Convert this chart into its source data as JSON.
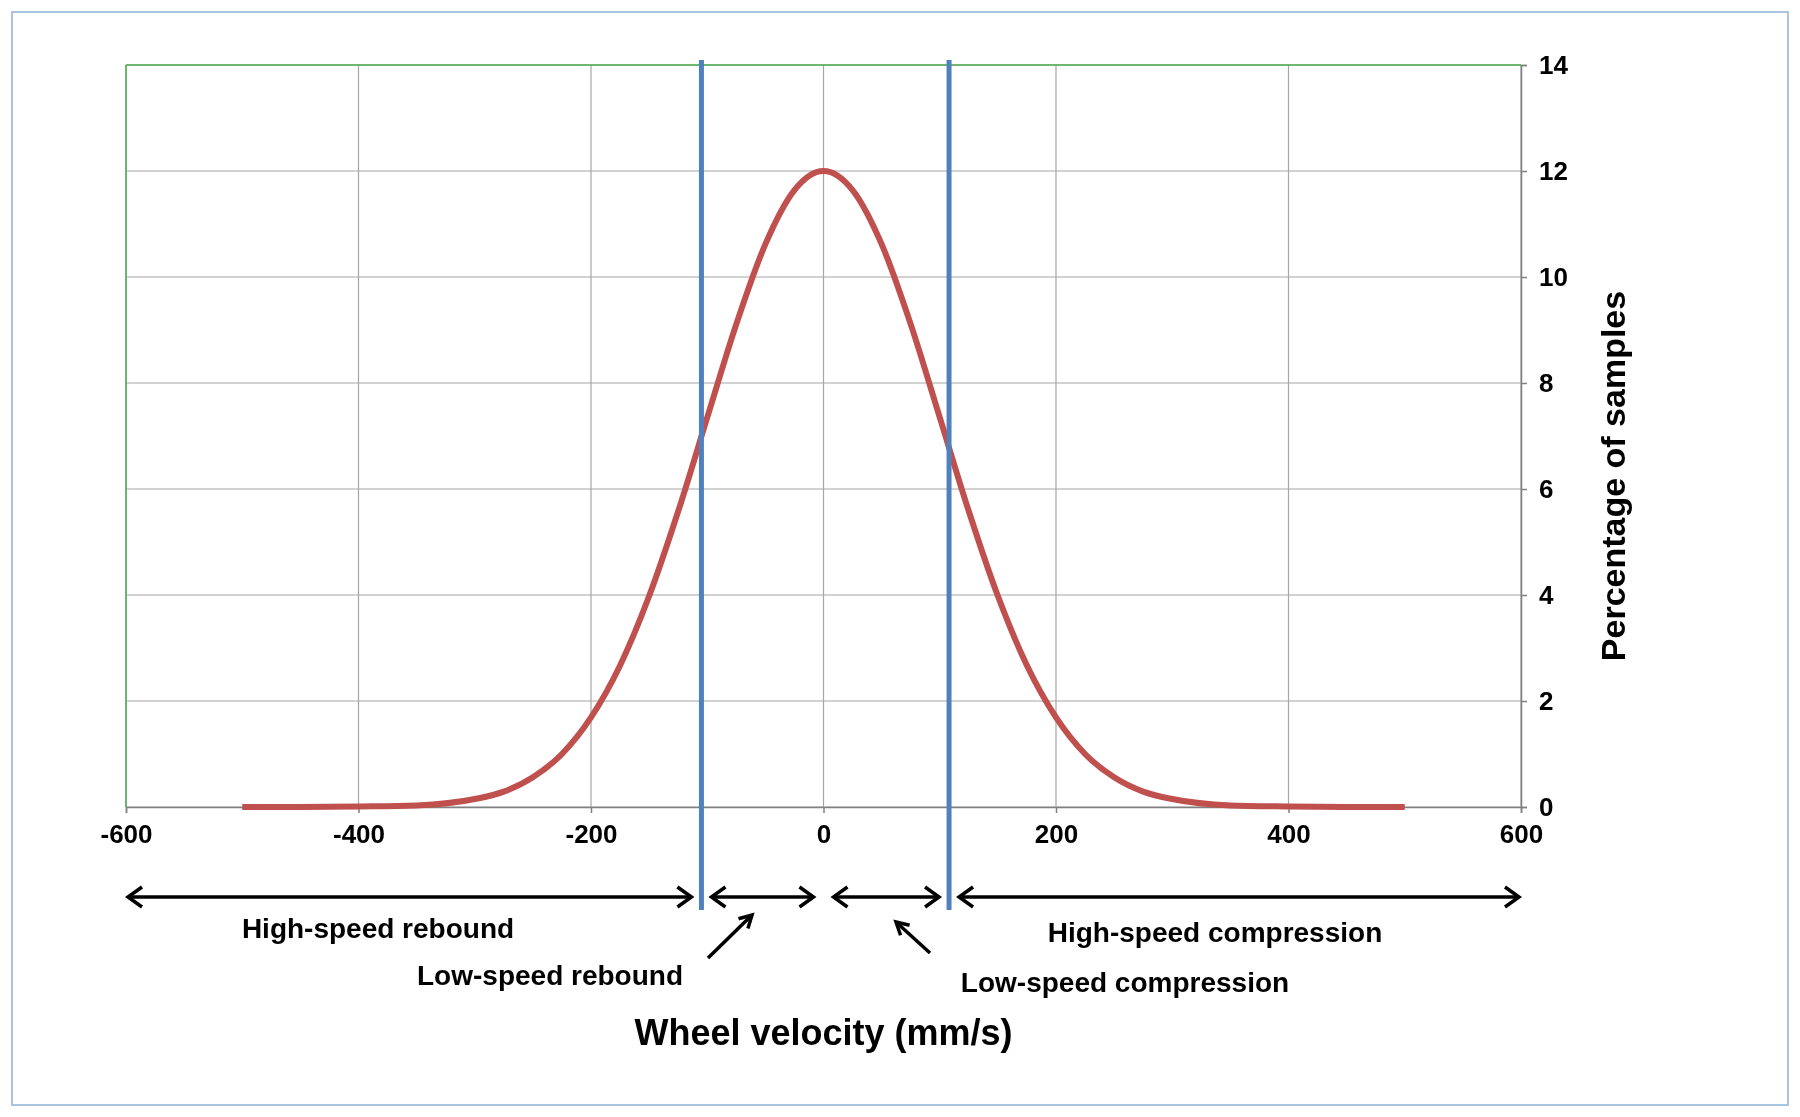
{
  "chart_data": {
    "type": "line",
    "xlabel": "Wheel velocity (mm/s)",
    "ylabel": "Percentage of samples",
    "series": [
      {
        "color": "#c0504d",
        "x": [
          -500,
          -450,
          -400,
          -350,
          -300,
          -275,
          -250,
          -225,
          -200,
          -175,
          -150,
          -125,
          -100,
          -75,
          -50,
          -25,
          0,
          25,
          50,
          75,
          100,
          125,
          150,
          175,
          200,
          225,
          250,
          275,
          300,
          350,
          400,
          450,
          500
        ],
        "values": [
          0,
          0,
          0.01,
          0.03,
          0.15,
          0.29,
          0.56,
          1.0,
          1.69,
          2.67,
          3.98,
          5.58,
          7.35,
          9.11,
          10.62,
          11.64,
          12,
          11.64,
          10.62,
          9.11,
          7.35,
          5.58,
          3.98,
          2.67,
          1.69,
          1.0,
          0.56,
          0.29,
          0.15,
          0.03,
          0.01,
          0,
          0
        ]
      }
    ],
    "xlim": [
      -600,
      600
    ],
    "xticks": [
      -600,
      -400,
      -200,
      0,
      200,
      400,
      600
    ],
    "ylim": [
      0,
      14
    ],
    "yticks": [
      0,
      2,
      4,
      6,
      8,
      10,
      12,
      14
    ],
    "grid": true,
    "marker": "none",
    "line_style": "solid",
    "ref_lines": [
      {
        "axis": "x",
        "value": -105,
        "color": "#4f81bd"
      },
      {
        "axis": "x",
        "value": 108,
        "color": "#4f81bd"
      }
    ],
    "annotations": [
      "High-speed rebound",
      "Low-speed rebound",
      "Low-speed compression",
      "High-speed compression"
    ]
  }
}
